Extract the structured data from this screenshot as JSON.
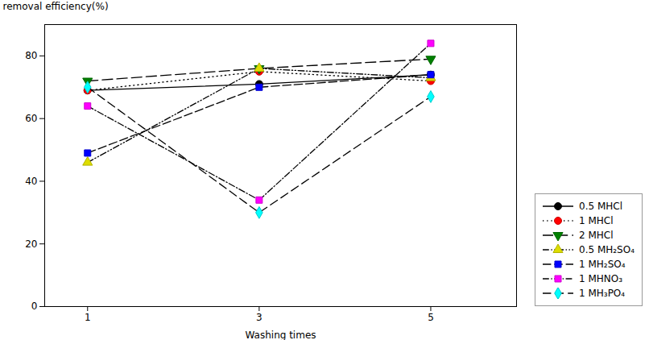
{
  "chart_data": {
    "type": "line",
    "x": [
      1,
      3,
      5
    ],
    "series": [
      {
        "name": "0.5 MHCl",
        "color": "black",
        "marker": "circle",
        "line_style": "solid",
        "values": [
          69,
          71,
          74
        ]
      },
      {
        "name": "1 MHCl",
        "color": "red",
        "marker": "circle",
        "line_style": "dotted",
        "values": [
          69,
          75,
          72
        ]
      },
      {
        "name": "2 MHCl",
        "color": "green",
        "marker": "triangle-down",
        "line_style": "longdash",
        "values": [
          72,
          76,
          79
        ]
      },
      {
        "name": "0.5 MH₂SO₄",
        "color": "#dddd00",
        "marker": "triangle-up",
        "line_style": "dashdotdot",
        "values": [
          46,
          76,
          73
        ]
      },
      {
        "name": "1 MH₂SO₄",
        "color": "blue",
        "marker": "square",
        "line_style": "longdash2",
        "values": [
          49,
          70,
          74
        ]
      },
      {
        "name": "1 MHNO₃",
        "color": "magenta",
        "marker": "square",
        "line_style": "dashdot",
        "values": [
          64,
          34,
          84
        ]
      },
      {
        "name": "1 MH₃PO₄",
        "color": "cyan",
        "marker": "diamond",
        "line_style": "longdash3",
        "values": [
          70,
          30,
          67
        ]
      }
    ],
    "xlabel": "Washing times",
    "ylabel": "removal efficiency(%)",
    "xlim": [
      0.5,
      6.0
    ],
    "ylim": [
      0,
      90
    ],
    "xticks": [
      1,
      3,
      5
    ],
    "yticks": [
      0,
      20,
      40,
      60,
      80
    ],
    "legend": "lower right"
  }
}
